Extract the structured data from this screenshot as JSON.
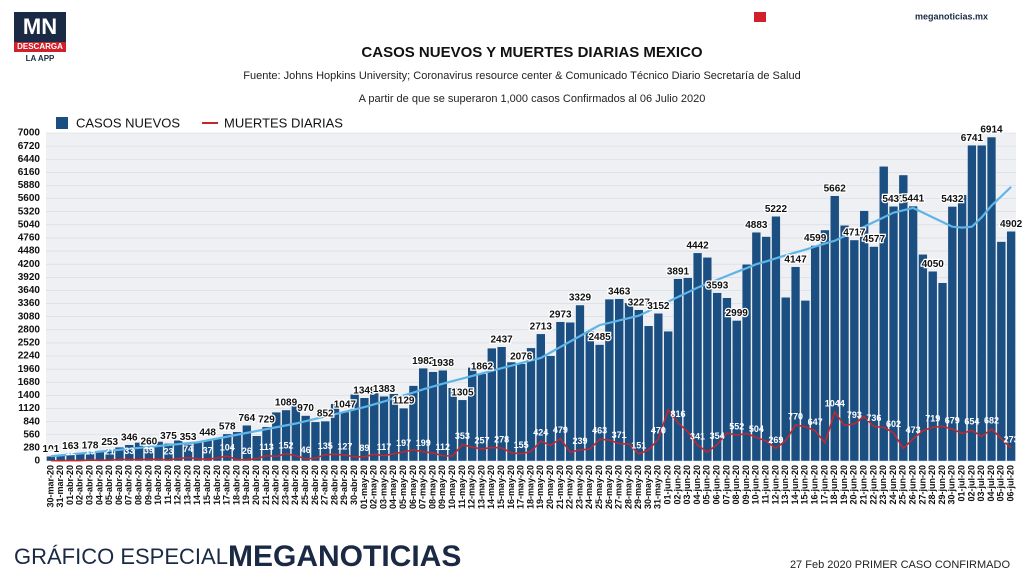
{
  "brand": {
    "logo": "MN",
    "download": "DESCARGA",
    "app": "LA APP",
    "site": "meganoticias.mx"
  },
  "footer": {
    "left": "GRÁFICO ESPECIAL",
    "brand": "MEGANOTICIAS",
    "right": "27 Feb 2020 PRIMER CASO CONFIRMADO"
  },
  "chart_data": {
    "type": "bar",
    "title": "CASOS NUEVOS Y MUERTES DIARIAS MEXICO",
    "subtitle": "Fuente: Johns Hopkins University; Coronavirus resource center & Comunicado Técnico Diario Secretaría de Salud",
    "note": "A partir de que se superaron 1,000 casos Confirmados al 06 Julio 2020",
    "categories": [
      "30-mar-20",
      "31-mar-20",
      "01-abr-20",
      "02-abr-20",
      "03-abr-20",
      "04-abr-20",
      "05-abr-20",
      "06-abr-20",
      "07-abr-20",
      "08-abr-20",
      "09-abr-20",
      "10-abr-20",
      "11-abr-20",
      "12-abr-20",
      "13-abr-20",
      "14-abr-20",
      "15-abr-20",
      "16-abr-20",
      "17-abr-20",
      "18-abr-20",
      "19-abr-20",
      "20-abr-20",
      "21-abr-20",
      "22-abr-20",
      "23-abr-20",
      "24-abr-20",
      "25-abr-20",
      "26-abr-20",
      "27-abr-20",
      "28-abr-20",
      "29-abr-20",
      "30-abr-20",
      "01-may-20",
      "02-may-20",
      "03-may-20",
      "04-may-20",
      "05-may-20",
      "06-may-20",
      "07-may-20",
      "08-may-20",
      "09-may-20",
      "10-may-20",
      "11-may-20",
      "12-may-20",
      "13-may-20",
      "14-may-20",
      "15-may-20",
      "16-may-20",
      "17-may-20",
      "18-may-20",
      "19-may-20",
      "20-may-20",
      "21-may-20",
      "22-may-20",
      "23-may-20",
      "24-may-20",
      "25-may-20",
      "26-may-20",
      "27-may-20",
      "28-may-20",
      "29-may-20",
      "30-may-20",
      "31-may-20",
      "01-jun-20",
      "02-jun-20",
      "03-jun-20",
      "04-jun-20",
      "05-jun-20",
      "06-jun-20",
      "07-jun-20",
      "08-jun-20",
      "09-jun-20",
      "10-jun-20",
      "11-jun-20",
      "12-jun-20",
      "13-jun-20",
      "14-jun-20",
      "15-jun-20",
      "16-jun-20",
      "17-jun-20",
      "18-jun-20",
      "19-jun-20",
      "20-jun-20",
      "21-jun-20",
      "22-jun-20",
      "23-jun-20",
      "24-jun-20",
      "25-jun-20",
      "26-jun-20",
      "27-jun-20",
      "28-jun-20",
      "29-jun-20",
      "30-jun-20",
      "01-jul-20",
      "02-jul-20",
      "03-jul-20",
      "04-jul-20",
      "05-jul-20",
      "06-jul-20"
    ],
    "series": [
      {
        "name": "CASOS NUEVOS",
        "color": "#1b4f82",
        "kind": "bar",
        "values": [
          101,
          115,
          163,
          174,
          178,
          202,
          253,
          296,
          346,
          396,
          260,
          416,
          375,
          442,
          353,
          396,
          448,
          493,
          578,
          622,
          764,
          539,
          729,
          1043,
          1089,
          1239,
          970,
          835,
          852,
          1223,
          1047,
          1425,
          1349,
          1515,
          1383,
          1434,
          1129,
          1609,
          1982,
          1906,
          1938,
          1562,
          1305,
          1997,
          1862,
          2409,
          2437,
          2112,
          2076,
          2414,
          2713,
          2248,
          2973,
          2960,
          3329,
          2764,
          2485,
          3455,
          3463,
          3377,
          3227,
          2885,
          3152,
          2771,
          3891,
          3912,
          4442,
          4346,
          3593,
          3484,
          2999,
          4199,
          4883,
          4790,
          5222,
          3494,
          4147,
          3427,
          4599,
          4930,
          5662,
          5030,
          4717,
          5343,
          4577,
          6288,
          5437,
          6104,
          5441,
          4410,
          4050,
          3805,
          5432,
          5681,
          6741,
          6740,
          6914,
          4683,
          4902
        ]
      },
      {
        "name": "MUERTES DIARIAS",
        "color": "#c0282d",
        "kind": "line",
        "values": [
          8,
          6,
          12,
          9,
          19,
          15,
          21,
          32,
          33,
          28,
          39,
          35,
          23,
          53,
          74,
          46,
          37,
          65,
          104,
          28,
          26,
          50,
          113,
          99,
          152,
          112,
          46,
          59,
          135,
          142,
          127,
          90,
          89,
          143,
          117,
          153,
          197,
          236,
          199,
          169,
          112,
          108,
          353,
          294,
          257,
          290,
          278,
          175,
          155,
          205,
          424,
          333,
          479,
          190,
          239,
          253,
          463,
          447,
          371,
          364,
          151,
          237,
          470,
          1092,
          816,
          625,
          341,
          188,
          354,
          596,
          552,
          587,
          504,
          424,
          269,
          439,
          770,
          730,
          647,
          387,
          1044,
          759,
          793,
          947,
          736,
          718,
          602,
          267,
          473,
          648,
          719,
          741,
          679,
          590,
          654,
          523,
          682,
          480,
          273
        ]
      },
      {
        "color": "#5fb4e8",
        "kind": "line",
        "values": [
          100,
          120,
          140,
          160,
          180,
          200,
          220,
          240,
          260,
          280,
          300,
          320,
          340,
          360,
          380,
          400,
          440,
          480,
          520,
          560,
          600,
          640,
          680,
          720,
          760,
          800,
          850,
          900,
          950,
          1000,
          1050,
          1100,
          1150,
          1210,
          1270,
          1340,
          1400,
          1460,
          1530,
          1590,
          1650,
          1705,
          1760,
          1815,
          1870,
          1925,
          1980,
          2035,
          2090,
          2145,
          2200,
          2315,
          2435,
          2550,
          2665,
          2785,
          2900,
          2950,
          3000,
          3050,
          3100,
          3200,
          3300,
          3400,
          3500,
          3600,
          3700,
          3785,
          3865,
          3950,
          4035,
          4115,
          4200,
          4260,
          4325,
          4390,
          4450,
          4510,
          4575,
          4640,
          4700,
          4800,
          4900,
          5000,
          5100,
          5200,
          5300,
          5350,
          5400,
          5300,
          5200,
          5100,
          5000,
          4980,
          5000,
          5200,
          5450,
          5650,
          5850
        ]
      }
    ],
    "ylim": [
      0,
      7000
    ],
    "yticks": [
      0,
      280,
      560,
      840,
      1120,
      1400,
      1680,
      1960,
      2240,
      2520,
      2800,
      3080,
      3360,
      3640,
      3920,
      4200,
      4480,
      4760,
      5040,
      5320,
      5600,
      5880,
      6160,
      6440,
      6720,
      7000
    ],
    "grid": true,
    "legend": "top-left"
  }
}
